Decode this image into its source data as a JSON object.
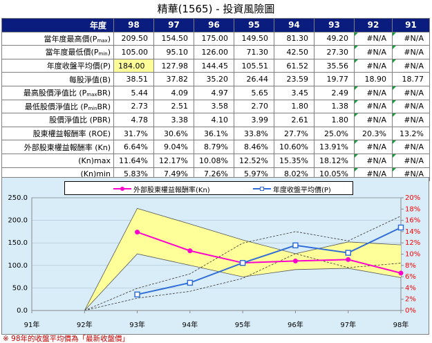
{
  "title": "精華(1565) - 投資風險圖",
  "table": {
    "header_label": "年度",
    "years": [
      "98",
      "97",
      "96",
      "95",
      "94",
      "93",
      "92",
      "91"
    ],
    "rows": [
      {
        "label_html": "當年度最高價(P<sub>max</sub>)",
        "values": [
          "209.50",
          "154.50",
          "175.00",
          "149.50",
          "81.30",
          "49.20",
          "#N/A",
          "#N/A"
        ]
      },
      {
        "label_html": "當年度最低價(P<sub>min</sub>)",
        "values": [
          "105.00",
          "95.10",
          "126.00",
          "71.30",
          "42.50",
          "27.30",
          "#N/A",
          "#N/A"
        ]
      },
      {
        "label_html": "年度收盤平均價(P)",
        "values": [
          "184.00",
          "127.98",
          "144.45",
          "105.51",
          "61.52",
          "35.56",
          "#N/A",
          "#N/A"
        ],
        "highlight_first": true
      },
      {
        "label_html": "每股淨值(B)",
        "values": [
          "38.51",
          "37.82",
          "35.20",
          "26.44",
          "23.59",
          "19.77",
          "18.90",
          "18.77"
        ]
      },
      {
        "label_html": "最高股價淨值比 (P<sub>max</sub>BR)",
        "values": [
          "5.44",
          "4.09",
          "4.97",
          "5.65",
          "3.45",
          "2.49",
          "#N/A",
          "#N/A"
        ]
      },
      {
        "label_html": "最低股價淨值比 (P<sub>min</sub>BR)",
        "values": [
          "2.73",
          "2.51",
          "3.58",
          "2.70",
          "1.80",
          "1.38",
          "#N/A",
          "#N/A"
        ]
      },
      {
        "label_html": "股價淨值比 (PBR)",
        "values": [
          "4.78",
          "3.38",
          "4.10",
          "3.99",
          "2.61",
          "1.80",
          "#N/A",
          "#N/A"
        ]
      },
      {
        "label_html": "股東權益報酬率 (ROE)",
        "values": [
          "31.7%",
          "30.6%",
          "36.1%",
          "33.8%",
          "27.7%",
          "25.0%",
          "20.3%",
          "13.2%"
        ]
      },
      {
        "label_html": "外部股東權益報酬率 (Kn)",
        "values": [
          "6.64%",
          "9.04%",
          "8.79%",
          "8.46%",
          "10.60%",
          "13.91%",
          "#N/A",
          "#N/A"
        ]
      },
      {
        "label_html": "(Kn)max",
        "values": [
          "11.64%",
          "12.17%",
          "10.08%",
          "12.52%",
          "15.35%",
          "18.12%",
          "#N/A",
          "#N/A"
        ]
      },
      {
        "label_html": "(Kn)min",
        "values": [
          "5.83%",
          "7.49%",
          "7.26%",
          "5.97%",
          "8.02%",
          "10.05%",
          "#N/A",
          "#N/A"
        ]
      }
    ]
  },
  "legend": {
    "kn_label": "外部股東權益報酬率(Kn)",
    "p_label": "年度收盤平均價(P)"
  },
  "footnote": "※ 98年的收盤平均價為「最新收盤價」",
  "colors": {
    "header_bg": "#0a1d7e",
    "highlight": "#ffff99",
    "kn_line": "#ff00cc",
    "p_line": "#2f6ed8",
    "band_fill": "#ffff99",
    "chart_bg": "#d9edf8",
    "right_axis": "#ff0000"
  },
  "chart_data": {
    "type": "line",
    "x": [
      "91年",
      "92年",
      "93年",
      "94年",
      "95年",
      "96年",
      "97年",
      "98年"
    ],
    "y_left": {
      "range": [
        0,
        250
      ],
      "ticks": [
        "0.0",
        "50.0",
        "100.0",
        "150.0",
        "200.0",
        "250.0"
      ]
    },
    "y_right": {
      "range": [
        0,
        20
      ],
      "ticks": [
        "0%",
        "2%",
        "4%",
        "6%",
        "8%",
        "10%",
        "12%",
        "14%",
        "16%",
        "18%",
        "20%"
      ]
    },
    "legend_position": "top",
    "series": [
      {
        "name": "外部股東權益報酬率(Kn)",
        "axis": "right",
        "values": [
          null,
          null,
          13.91,
          10.6,
          8.46,
          8.79,
          9.04,
          6.64
        ]
      },
      {
        "name": "年度收盤平均價(P)",
        "axis": "left",
        "values": [
          null,
          null,
          35.56,
          61.52,
          105.51,
          144.45,
          127.98,
          184.0
        ]
      }
    ],
    "kn_band": {
      "max": [
        null,
        0,
        18.12,
        15.35,
        12.52,
        10.08,
        12.17,
        11.64
      ],
      "min": [
        null,
        0,
        10.05,
        8.02,
        5.97,
        7.26,
        7.49,
        5.83
      ]
    },
    "price_band": {
      "max": [
        null,
        0,
        49.2,
        81.3,
        149.5,
        175.0,
        154.5,
        209.5
      ],
      "min": [
        null,
        0,
        27.3,
        42.5,
        71.3,
        126.0,
        95.1,
        105.0
      ]
    }
  }
}
